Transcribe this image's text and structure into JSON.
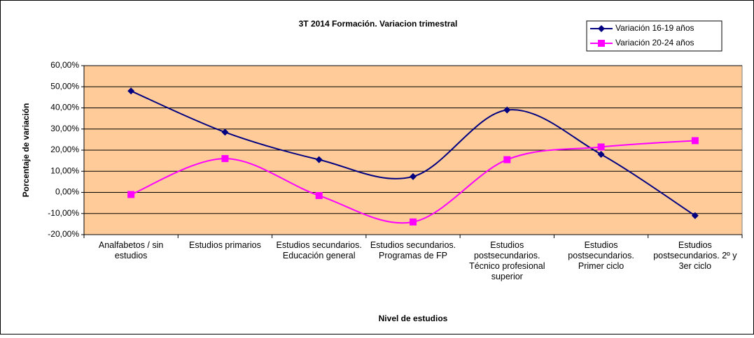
{
  "chart_data": {
    "type": "line",
    "title": "3T 2014 Formación. Variacion trimestral",
    "x_label": "Nivel de estudios",
    "y_label": "Porcentaje de variación",
    "categories": [
      "Analfabetos / sin estudios",
      "Estudios primarios",
      "Estudios secundarios. Educación general",
      "Estudios secundarios. Programas de FP",
      "Estudios postsecundarios. Técnico profesional superior",
      "Estudios postsecundarios. Primer ciclo",
      "Estudios postsecundarios. 2º y 3er ciclo"
    ],
    "series": [
      {
        "name": "Variación 16-19 años",
        "color": "#000080",
        "marker": "diamond",
        "values": [
          48,
          28.5,
          15.5,
          7.5,
          39,
          18,
          -11
        ]
      },
      {
        "name": "Variación 20-24 años",
        "color": "#ff00ff",
        "marker": "square",
        "values": [
          -1,
          16,
          -1.5,
          -14,
          15.5,
          21.5,
          24.5
        ]
      }
    ],
    "ylim": [
      -20,
      60
    ],
    "yticks": [
      {
        "value": -20,
        "label": "-20,00%"
      },
      {
        "value": -10,
        "label": "-10,00%"
      },
      {
        "value": 0,
        "label": "0,00%"
      },
      {
        "value": 10,
        "label": "10,00%"
      },
      {
        "value": 20,
        "label": "20,00%"
      },
      {
        "value": 30,
        "label": "30,00%"
      },
      {
        "value": 40,
        "label": "40,00%"
      },
      {
        "value": 50,
        "label": "50,00%"
      },
      {
        "value": 60,
        "label": "60,00%"
      }
    ],
    "grid": true,
    "smooth": true,
    "legend": "top-right",
    "plot_background": "#ffcc99"
  }
}
